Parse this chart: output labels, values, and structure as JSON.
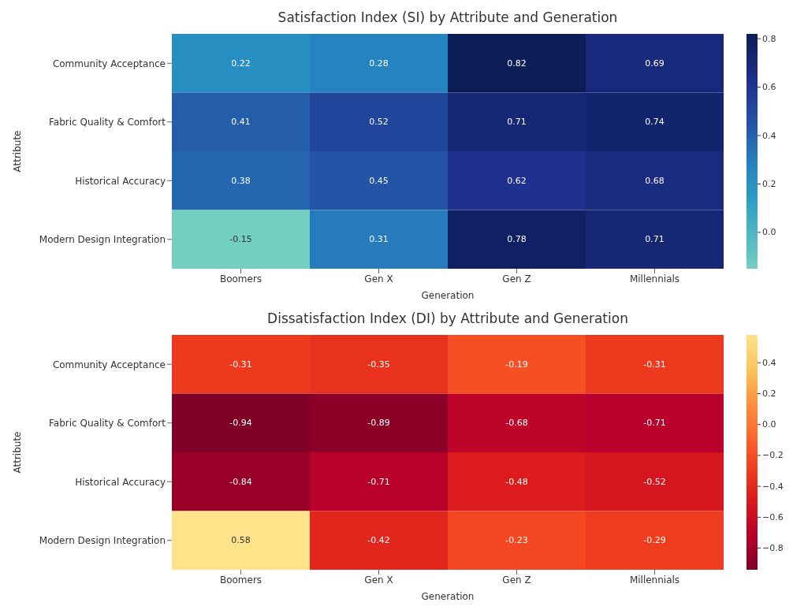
{
  "chart_data": [
    {
      "type": "heatmap",
      "title": "Satisfaction Index (SI) by Attribute and Generation",
      "xlabel": "Generation",
      "ylabel": "Attribute",
      "categories": [
        "Boomers",
        "Gen X",
        "Gen Z",
        "Millennials"
      ],
      "y_categories": [
        "Community Acceptance",
        "Fabric Quality & Comfort",
        "Historical Accuracy",
        "Modern Design Integration"
      ],
      "cells": [
        [
          0.22,
          0.28,
          0.82,
          0.69
        ],
        [
          0.41,
          0.52,
          0.71,
          0.74
        ],
        [
          0.38,
          0.45,
          0.62,
          0.68
        ],
        [
          -0.15,
          0.31,
          0.78,
          0.71
        ]
      ],
      "clim": [
        -0.15,
        0.82
      ],
      "cticks": [
        {
          "value": 0,
          "label": "0.0"
        },
        0.2,
        0.4,
        0.6,
        0.8
      ],
      "data_labels": true
    },
    {
      "type": "heatmap",
      "title": "Dissatisfaction Index (DI) by Attribute and Generation",
      "xlabel": "Generation",
      "ylabel": "Attribute",
      "categories": [
        "Boomers",
        "Gen X",
        "Gen Z",
        "Millennials"
      ],
      "y_categories": [
        "Community Acceptance",
        "Fabric Quality & Comfort",
        "Historical Accuracy",
        "Modern Design Integration"
      ],
      "cells": [
        [
          -0.31,
          -0.35,
          -0.19,
          -0.31
        ],
        [
          -0.94,
          -0.89,
          -0.68,
          -0.71
        ],
        [
          -0.84,
          -0.71,
          -0.48,
          -0.52
        ],
        [
          0.58,
          -0.42,
          -0.23,
          -0.29
        ]
      ],
      "clim": [
        -0.94,
        0.58
      ],
      "cticks": [
        -0.8,
        -0.6,
        -0.4,
        -0.2,
        {
          "value": 0,
          "label": "0.0"
        },
        0.2,
        0.4
      ],
      "data_labels": true
    }
  ]
}
